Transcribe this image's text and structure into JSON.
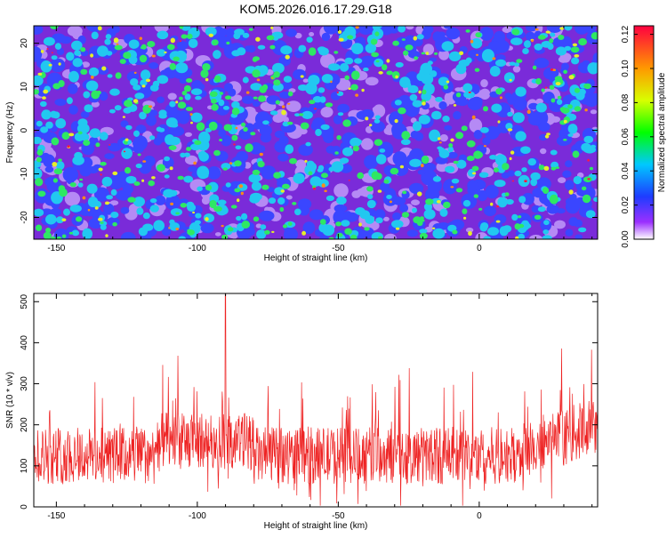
{
  "title": "KOM5.2026.016.17.29.G18",
  "colors": {
    "snr_line": "#ee2222",
    "frame": "#000000"
  },
  "chart_data": [
    {
      "type": "heatmap",
      "xlabel": "Height of straight line (km)",
      "ylabel": "Frequency (Hz)",
      "xlim": [
        -158,
        42
      ],
      "ylim": [
        -25,
        24
      ],
      "xticks": [
        -150,
        -100,
        -50,
        0
      ],
      "xtick_labels": [
        "-150",
        "-100",
        "-50",
        "0"
      ],
      "yticks": [
        20,
        10,
        0,
        -10,
        -20
      ],
      "ytick_labels": [
        "20",
        "10",
        "0",
        "-10",
        "-20"
      ],
      "colorbar": {
        "label": "Normalized spectral amplitude",
        "range": [
          0,
          0.125
        ],
        "ticks": [
          0.0,
          0.02,
          0.04,
          0.06,
          0.08,
          0.1,
          0.12
        ],
        "tick_labels": [
          "0.00",
          "0.02",
          "0.04",
          "0.06",
          "0.08",
          "0.10",
          "0.12"
        ]
      },
      "description_values": "random speckle field, background ~0.02-0.04, peaks up to ~0.12"
    },
    {
      "type": "line",
      "xlabel": "Height of straight line (km)",
      "ylabel": "SNR (10 * v/v)",
      "xlim": [
        -158,
        42
      ],
      "ylim": [
        0,
        520
      ],
      "xticks": [
        -150,
        -100,
        -50,
        0
      ],
      "xtick_labels": [
        "-150",
        "-100",
        "-50",
        "0"
      ],
      "yticks": [
        0,
        100,
        200,
        300,
        400,
        500
      ],
      "ytick_labels": [
        "0",
        "100",
        "200",
        "300",
        "400",
        "500"
      ],
      "series": [
        {
          "name": "SNR",
          "baseline_mean": 125,
          "noise_amplitude": 70,
          "peak_x": -90,
          "peak_value": 520,
          "trend_end_value": 200
        }
      ]
    }
  ]
}
